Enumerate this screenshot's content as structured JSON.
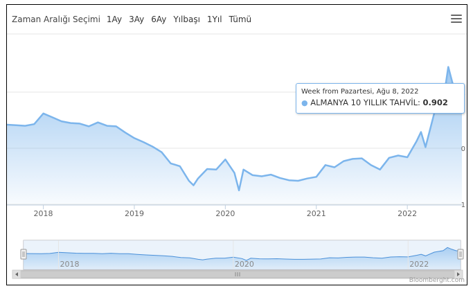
{
  "toolbar": {
    "range_label": "Zaman Aralığı Seçimi",
    "buttons": [
      "1Ay",
      "3Ay",
      "6Ay",
      "Yılbaşı",
      "1Yıl",
      "Tümü"
    ],
    "menu_icon": "hamburger-menu-icon"
  },
  "tooltip": {
    "header": "Week from Pazartesi, Ağu 8, 2022",
    "series_label": "ALMANYA 10 YILLIK TAHVİL: ",
    "value": "0.902"
  },
  "credit": "Bloomberght.com",
  "colors": {
    "line": "#7cb5ec",
    "accent": "#4a90d9"
  },
  "chart_data": {
    "type": "area",
    "ylim": [
      -1,
      1
    ],
    "y_tick_labels": [
      "1",
      "0",
      "-1"
    ],
    "x_tick_labels": [
      "2018",
      "2019",
      "2020",
      "2021",
      "2022"
    ],
    "navigator_x_labels": [
      "2018",
      "2020",
      "2022"
    ],
    "series": [
      {
        "x": [
          2017.6,
          2017.7,
          2017.8,
          2017.9,
          2018.0,
          2018.1,
          2018.2,
          2018.3,
          2018.4,
          2018.5,
          2018.6,
          2018.7,
          2018.8,
          2018.9,
          2019.0,
          2019.1,
          2019.2,
          2019.3,
          2019.4,
          2019.5,
          2019.6,
          2019.65,
          2019.7,
          2019.8,
          2019.9,
          2020.0,
          2020.1,
          2020.15,
          2020.2,
          2020.3,
          2020.4,
          2020.5,
          2020.6,
          2020.7,
          2020.8,
          2020.9,
          2021.0,
          2021.1,
          2021.2,
          2021.3,
          2021.4,
          2021.5,
          2021.6,
          2021.7,
          2021.8,
          2021.9,
          2022.0,
          2022.1,
          2022.15,
          2022.2,
          2022.3,
          2022.4,
          2022.45,
          2022.5,
          2022.55,
          2022.6
        ],
        "values": [
          0.42,
          0.41,
          0.4,
          0.43,
          0.62,
          0.55,
          0.48,
          0.45,
          0.44,
          0.39,
          0.46,
          0.4,
          0.39,
          0.28,
          0.18,
          0.11,
          0.03,
          -0.07,
          -0.27,
          -0.32,
          -0.58,
          -0.66,
          -0.54,
          -0.37,
          -0.38,
          -0.2,
          -0.44,
          -0.75,
          -0.38,
          -0.48,
          -0.5,
          -0.47,
          -0.53,
          -0.57,
          -0.58,
          -0.54,
          -0.51,
          -0.3,
          -0.34,
          -0.23,
          -0.19,
          -0.18,
          -0.3,
          -0.38,
          -0.17,
          -0.13,
          -0.16,
          0.12,
          0.29,
          0.02,
          0.65,
          0.9,
          1.45,
          1.14,
          0.89,
          0.902
        ]
      }
    ]
  }
}
